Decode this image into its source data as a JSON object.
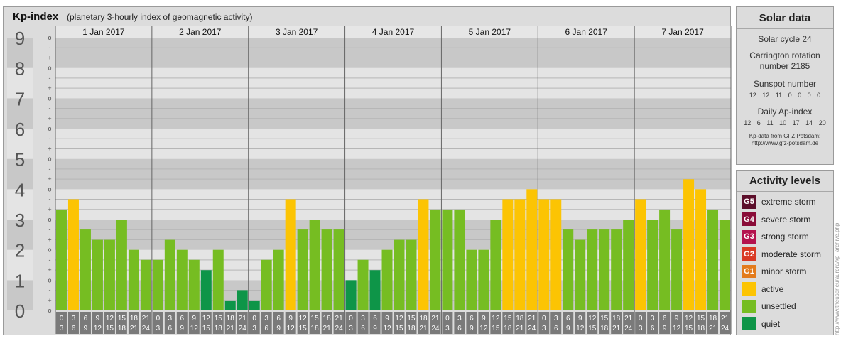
{
  "header": {
    "title": "Kp-index",
    "subtitle": "(planetary 3-hourly index of geomagnetic activity)"
  },
  "chart_data": {
    "type": "bar",
    "ylim": [
      0,
      9
    ],
    "y_ticks": [
      "0",
      "1",
      "2",
      "3",
      "4",
      "5",
      "6",
      "7",
      "8",
      "9"
    ],
    "minor_tick_labels": [
      "o",
      "+",
      "-"
    ],
    "days": [
      "1 Jan 2017",
      "2 Jan 2017",
      "3 Jan 2017",
      "4 Jan 2017",
      "5 Jan 2017",
      "6 Jan 2017",
      "7 Jan 2017"
    ],
    "hour_start_labels": [
      "0",
      "3",
      "6",
      "9",
      "12",
      "15",
      "18",
      "21"
    ],
    "hour_end_labels": [
      "3",
      "6",
      "9",
      "12",
      "15",
      "18",
      "21",
      "24"
    ],
    "colors": {
      "quiet": "#0e9548",
      "unsettled": "#76bd22",
      "active": "#fcc403",
      "band_dark": "#c8c8c8",
      "band_light": "#e4e4e4",
      "gridline": "#b6b6b6",
      "divider": "#666666",
      "slot_bg": "#7a7a7a"
    },
    "values": [
      3.33,
      3.67,
      2.67,
      2.33,
      2.33,
      3.0,
      2.0,
      1.67,
      1.67,
      2.33,
      2.0,
      1.67,
      1.33,
      2.0,
      0.33,
      0.67,
      0.33,
      1.67,
      2.0,
      3.67,
      2.67,
      3.0,
      2.67,
      2.67,
      1.0,
      1.67,
      1.33,
      2.0,
      2.33,
      2.33,
      3.67,
      3.33,
      3.33,
      3.33,
      2.0,
      2.0,
      3.0,
      3.67,
      3.67,
      4.0,
      3.67,
      3.67,
      2.67,
      2.33,
      2.67,
      2.67,
      2.67,
      3.0,
      3.67,
      3.0,
      3.33,
      2.67,
      4.33,
      4.0,
      3.33,
      3.0
    ]
  },
  "solar": {
    "title": "Solar data",
    "cycle": "Solar cycle 24",
    "carrington_line1": "Carrington rotation",
    "carrington_line2": "number 2185",
    "sunspot_title": "Sunspot number",
    "sunspot_values": "12 12 11 0 0 0 0",
    "ap_title": "Daily Ap-index",
    "ap_values": "12 6 11 10 17 14 20",
    "credit_line1": "Kp-data from GFZ Potsdam:",
    "credit_line2": "http://www.gfz-potsdam.de"
  },
  "levels": {
    "title": "Activity levels",
    "items": [
      {
        "code": "G5",
        "label": "extreme storm",
        "color": "#5c0e2a"
      },
      {
        "code": "G4",
        "label": "severe storm",
        "color": "#8a0c38"
      },
      {
        "code": "G3",
        "label": "strong storm",
        "color": "#b4124e"
      },
      {
        "code": "G2",
        "label": "moderate storm",
        "color": "#d93a24"
      },
      {
        "code": "G1",
        "label": "minor storm",
        "color": "#e37b1c"
      },
      {
        "code": "",
        "label": "active",
        "color": "#fcc403"
      },
      {
        "code": "",
        "label": "unsettled",
        "color": "#76bd22"
      },
      {
        "code": "",
        "label": "quiet",
        "color": "#0e9548"
      }
    ]
  },
  "watermark": "http://www.theuser.eu/aurora/kp_archive.php"
}
